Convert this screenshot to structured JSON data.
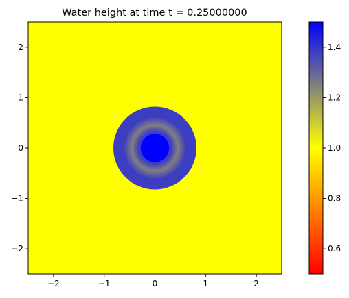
{
  "chart_data": {
    "type": "heatmap",
    "title": "Water height at time t =     0.25000000",
    "xlabel": "",
    "ylabel": "",
    "xlim": [
      -2.5,
      2.5
    ],
    "ylim": [
      -2.5,
      2.5
    ],
    "xticks": [
      "−2",
      "−1",
      "0",
      "1",
      "2"
    ],
    "xtick_values": [
      -2,
      -1,
      0,
      1,
      2
    ],
    "yticks": [
      "−2",
      "−1",
      "0",
      "1",
      "2"
    ],
    "ytick_values": [
      -2,
      -1,
      0,
      1,
      2
    ],
    "grid": false,
    "field": {
      "background_value": 1.0,
      "ring_outer_radius": 0.82,
      "ring_inner_radius": 0.28,
      "ring_value_outer": 1.38,
      "ring_value_mid": 1.25,
      "center_value": 1.5
    },
    "colorbar": {
      "vmin": 0.5,
      "vmax": 1.5,
      "ticks": [
        "0.6",
        "0.8",
        "1.0",
        "1.2",
        "1.4"
      ],
      "tick_values": [
        0.6,
        0.8,
        1.0,
        1.2,
        1.4
      ],
      "colors": [
        {
          "value": 0.5,
          "color": "#ff0000"
        },
        {
          "value": 1.0,
          "color": "#ffff00"
        },
        {
          "value": 1.25,
          "color": "#808080"
        },
        {
          "value": 1.5,
          "color": "#0000ff"
        }
      ]
    }
  }
}
